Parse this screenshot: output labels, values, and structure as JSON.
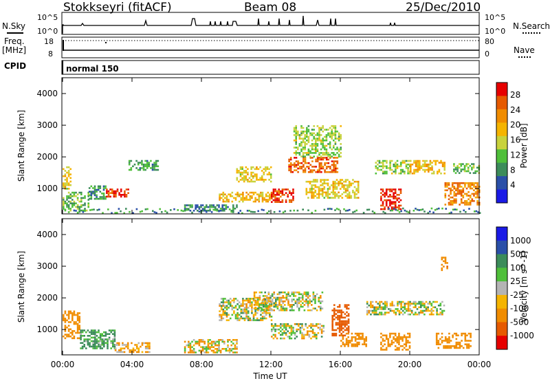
{
  "header": {
    "station": "Stokkseyri (fitACF)",
    "beam": "Beam 08",
    "date": "25/Dec/2010"
  },
  "top_panels": {
    "nsky_label": "N.Sky",
    "nsky_ticks": [
      "10^5",
      "10^0"
    ],
    "nsearch_label": "N.Search",
    "nsearch_ticks": [
      "10^5",
      "10^0"
    ],
    "freq_label": "Freq.",
    "freq_unit": "[MHz]",
    "freq_ticks": [
      "18",
      "8"
    ],
    "nave_label": "Nave",
    "nave_ticks": [
      "80",
      "0"
    ],
    "cpid_label": "CPID",
    "cpid_value": "normal 150"
  },
  "x_axis": {
    "label": "Time UT",
    "ticks": [
      "00:00",
      "04:00",
      "08:00",
      "12:00",
      "16:00",
      "20:00",
      "00:00"
    ]
  },
  "colors": {
    "power": [
      "#1a1ae6",
      "#2a4fa8",
      "#3c8c5a",
      "#4fbf3a",
      "#c8d23c",
      "#f5b400",
      "#f08c00",
      "#e65a00",
      "#e60000"
    ],
    "velocity_pos": [
      "#1a1ae6",
      "#2a4fa8",
      "#3c8c5a",
      "#4fbf3a"
    ],
    "velocity_mid": "#b4b4b4",
    "velocity_neg": [
      "#f5b400",
      "#f08c00",
      "#e65a00",
      "#e60000"
    ]
  },
  "chart_data": [
    {
      "type": "heatmap",
      "title": "",
      "xlabel": "",
      "ylabel": "Slant Range [km]",
      "ylim": [
        200,
        4500
      ],
      "yticks": [
        "4000",
        "3000",
        "2000",
        "1000"
      ],
      "colorbar": {
        "label": "Power [dB]",
        "ticks": [
          "28",
          "24",
          "20",
          "16",
          "12",
          "8",
          "4"
        ],
        "range": [
          0,
          32
        ]
      },
      "patches": [
        {
          "t": [
            0.0,
            0.5
          ],
          "r": [
            1000,
            1700
          ],
          "value": 18
        },
        {
          "t": [
            0.0,
            1.5
          ],
          "r": [
            300,
            900
          ],
          "value": 12
        },
        {
          "t": [
            1.5,
            2.5
          ],
          "r": [
            700,
            1100
          ],
          "value": 10
        },
        {
          "t": [
            2.5,
            3.8
          ],
          "r": [
            750,
            1000
          ],
          "value": 28
        },
        {
          "t": [
            3.8,
            5.5
          ],
          "r": [
            1600,
            1900
          ],
          "value": 10
        },
        {
          "t": [
            7.0,
            10.0
          ],
          "r": [
            300,
            500
          ],
          "value": 8
        },
        {
          "t": [
            9.0,
            12.0
          ],
          "r": [
            600,
            900
          ],
          "value": 20
        },
        {
          "t": [
            10.0,
            12.0
          ],
          "r": [
            1200,
            1700
          ],
          "value": 18
        },
        {
          "t": [
            12.0,
            13.3
          ],
          "r": [
            600,
            1000
          ],
          "value": 28
        },
        {
          "t": [
            13.0,
            15.8
          ],
          "r": [
            1500,
            2000
          ],
          "value": 26
        },
        {
          "t": [
            13.3,
            16.0
          ],
          "r": [
            2000,
            3000
          ],
          "value": 14
        },
        {
          "t": [
            14.0,
            17.0
          ],
          "r": [
            700,
            1300
          ],
          "value": 18
        },
        {
          "t": [
            18.0,
            20.0
          ],
          "r": [
            1500,
            1900
          ],
          "value": 14
        },
        {
          "t": [
            18.3,
            19.5
          ],
          "r": [
            350,
            1000
          ],
          "value": 29
        },
        {
          "t": [
            20.0,
            22.0
          ],
          "r": [
            1500,
            1900
          ],
          "value": 20
        },
        {
          "t": [
            22.0,
            24.0
          ],
          "r": [
            500,
            1200
          ],
          "value": 24
        },
        {
          "t": [
            22.5,
            24.0
          ],
          "r": [
            1500,
            1800
          ],
          "value": 12
        }
      ]
    },
    {
      "type": "heatmap",
      "title": "",
      "xlabel": "Time UT",
      "ylabel": "Slant Range [km]",
      "ylim": [
        200,
        4500
      ],
      "yticks": [
        "4000",
        "3000",
        "2000",
        "1000"
      ],
      "colorbar": {
        "label": "Velocity [m s^-1]",
        "ticks": [
          "1000",
          "500",
          "100",
          "25",
          "-25",
          "-100",
          "-500",
          "-1000"
        ]
      },
      "patches": [
        {
          "t": [
            0.0,
            1.0
          ],
          "r": [
            700,
            1600
          ],
          "value": -300
        },
        {
          "t": [
            1.0,
            3.0
          ],
          "r": [
            400,
            1000
          ],
          "value": 150
        },
        {
          "t": [
            3.0,
            5.0
          ],
          "r": [
            300,
            600
          ],
          "value": -120
        },
        {
          "t": [
            7.0,
            10.0
          ],
          "r": [
            300,
            700
          ],
          "value": -60
        },
        {
          "t": [
            9.0,
            12.0
          ],
          "r": [
            1300,
            2000
          ],
          "value": 0
        },
        {
          "t": [
            11.0,
            15.0
          ],
          "r": [
            1600,
            2200
          ],
          "value": 0
        },
        {
          "t": [
            12.0,
            15.0
          ],
          "r": [
            700,
            1200
          ],
          "value": 0
        },
        {
          "t": [
            15.5,
            16.5
          ],
          "r": [
            800,
            1800
          ],
          "value": -800
        },
        {
          "t": [
            16.0,
            17.5
          ],
          "r": [
            500,
            900
          ],
          "value": -300
        },
        {
          "t": [
            17.5,
            22.0
          ],
          "r": [
            1500,
            1900
          ],
          "value": 0
        },
        {
          "t": [
            18.3,
            20.0
          ],
          "r": [
            350,
            900
          ],
          "value": -300
        },
        {
          "t": [
            21.5,
            23.5
          ],
          "r": [
            400,
            900
          ],
          "value": -300
        },
        {
          "t": [
            21.8,
            22.2
          ],
          "r": [
            2900,
            3300
          ],
          "value": -400
        }
      ]
    }
  ]
}
